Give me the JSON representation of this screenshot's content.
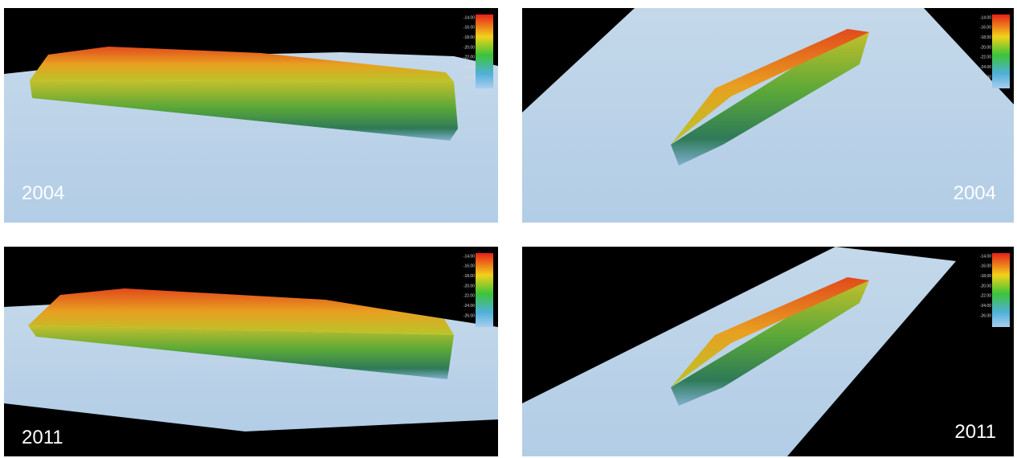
{
  "panels": [
    {
      "year": "2004"
    },
    {
      "year": "2004"
    },
    {
      "year": "2011"
    },
    {
      "year": "2011"
    }
  ],
  "colorbar": {
    "labels": [
      "-14.00",
      "-16.00",
      "-18.00",
      "-20.00",
      "-22.00",
      "-24.00",
      "-26.00"
    ]
  }
}
